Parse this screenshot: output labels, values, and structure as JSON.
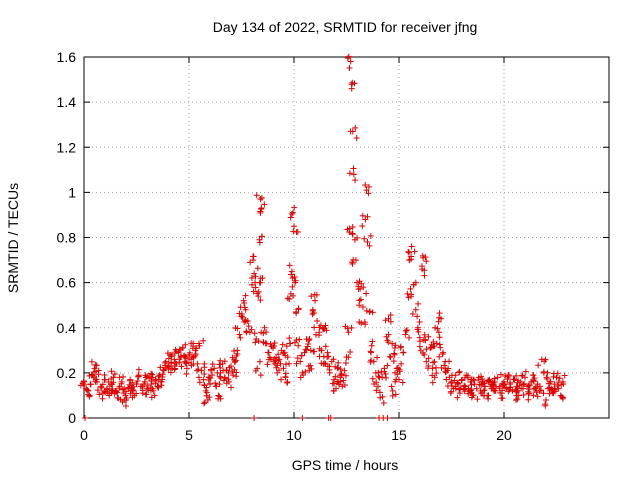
{
  "chart_data": {
    "type": "scatter",
    "title": "Day 134 of 2022, SRMTID for receiver jfng",
    "xlabel": "GPS time / hours",
    "ylabel": "SRMTID / TECUs",
    "xlim": [
      0,
      25
    ],
    "ylim": [
      0,
      1.6
    ],
    "xticks": [
      0,
      5,
      10,
      15,
      20
    ],
    "xtick_labels": [
      "0",
      "5",
      "10",
      "15",
      "20"
    ],
    "yticks": [
      0,
      0.2,
      0.4,
      0.6,
      0.8,
      1,
      1.2,
      1.4,
      1.6
    ],
    "ytick_labels": [
      "0",
      "0.2",
      "0.4",
      "0.6",
      "0.8",
      "1",
      "1.2",
      "1.4",
      "1.6"
    ],
    "grid": true,
    "marker": "plus",
    "colors": {
      "series": "#e00000",
      "grid": "#a0a0a0",
      "frame": "#000000"
    },
    "series": [
      {
        "name": "SRMTID",
        "points": [
          [
            0.0,
            0.16
          ],
          [
            0.1,
            0.13
          ],
          [
            0.2,
            0.12
          ],
          [
            0.3,
            0.15
          ],
          [
            0.4,
            0.19
          ],
          [
            0.5,
            0.22
          ],
          [
            0.6,
            0.17
          ],
          [
            0.7,
            0.21
          ],
          [
            0.8,
            0.14
          ],
          [
            0.9,
            0.11
          ],
          [
            1.0,
            0.17
          ],
          [
            1.1,
            0.13
          ],
          [
            1.2,
            0.1
          ],
          [
            1.3,
            0.15
          ],
          [
            1.4,
            0.18
          ],
          [
            1.5,
            0.12
          ],
          [
            1.6,
            0.09
          ],
          [
            1.7,
            0.14
          ],
          [
            1.8,
            0.16
          ],
          [
            1.9,
            0.11
          ],
          [
            2.0,
            0.08
          ],
          [
            2.1,
            0.13
          ],
          [
            2.2,
            0.17
          ],
          [
            2.3,
            0.12
          ],
          [
            2.4,
            0.1
          ],
          [
            2.5,
            0.15
          ],
          [
            2.6,
            0.19
          ],
          [
            2.7,
            0.14
          ],
          [
            2.8,
            0.11
          ],
          [
            2.9,
            0.16
          ],
          [
            3.0,
            0.13
          ],
          [
            3.1,
            0.18
          ],
          [
            3.2,
            0.15
          ],
          [
            3.3,
            0.12
          ],
          [
            3.4,
            0.17
          ],
          [
            3.5,
            0.14
          ],
          [
            3.6,
            0.19
          ],
          [
            3.7,
            0.16
          ],
          [
            3.8,
            0.21
          ],
          [
            3.9,
            0.25
          ],
          [
            4.0,
            0.23
          ],
          [
            4.1,
            0.28
          ],
          [
            4.2,
            0.22
          ],
          [
            4.3,
            0.26
          ],
          [
            4.4,
            0.24
          ],
          [
            4.5,
            0.29
          ],
          [
            4.6,
            0.27
          ],
          [
            4.7,
            0.31
          ],
          [
            4.8,
            0.25
          ],
          [
            4.9,
            0.22
          ],
          [
            5.0,
            0.28
          ],
          [
            5.1,
            0.26
          ],
          [
            5.2,
            0.33
          ],
          [
            5.3,
            0.3
          ],
          [
            5.4,
            0.24
          ],
          [
            5.5,
            0.32
          ],
          [
            5.6,
            0.21
          ],
          [
            5.7,
            0.17
          ],
          [
            5.8,
            0.12
          ],
          [
            5.9,
            0.08
          ],
          [
            6.0,
            0.15
          ],
          [
            6.1,
            0.19
          ],
          [
            6.2,
            0.22
          ],
          [
            6.3,
            0.14
          ],
          [
            6.4,
            0.1
          ],
          [
            6.5,
            0.2
          ],
          [
            6.6,
            0.24
          ],
          [
            6.7,
            0.18
          ],
          [
            6.8,
            0.21
          ],
          [
            6.9,
            0.16
          ],
          [
            7.0,
            0.23
          ],
          [
            7.1,
            0.19
          ],
          [
            7.2,
            0.25
          ],
          [
            7.3,
            0.3
          ],
          [
            7.4,
            0.37
          ],
          [
            7.5,
            0.45
          ],
          [
            7.6,
            0.52
          ],
          [
            7.7,
            0.48
          ],
          [
            7.8,
            0.43
          ],
          [
            7.9,
            0.38
          ],
          [
            8.0,
            0.59
          ],
          [
            8.05,
            0.7
          ],
          [
            8.1,
            0.64
          ],
          [
            8.2,
            0.35
          ],
          [
            8.25,
            0.22
          ],
          [
            8.3,
            0.54
          ],
          [
            8.35,
            0.79
          ],
          [
            8.4,
            0.97
          ],
          [
            8.45,
            0.93
          ],
          [
            8.5,
            0.62
          ],
          [
            8.6,
            0.4
          ],
          [
            8.7,
            0.33
          ],
          [
            8.8,
            0.29
          ],
          [
            8.9,
            0.26
          ],
          [
            9.0,
            0.31
          ],
          [
            9.1,
            0.24
          ],
          [
            9.2,
            0.2
          ],
          [
            9.3,
            0.26
          ],
          [
            9.4,
            0.3
          ],
          [
            9.5,
            0.22
          ],
          [
            9.6,
            0.18
          ],
          [
            9.7,
            0.27
          ],
          [
            9.8,
            0.33
          ],
          [
            9.85,
            0.55
          ],
          [
            9.9,
            0.65
          ],
          [
            9.95,
            0.91
          ],
          [
            10.0,
            0.85
          ],
          [
            10.05,
            0.6
          ],
          [
            10.1,
            0.47
          ],
          [
            10.2,
            0.32
          ],
          [
            10.3,
            0.25
          ],
          [
            10.4,
            0.2
          ],
          [
            10.5,
            0.29
          ],
          [
            10.6,
            0.35
          ],
          [
            10.7,
            0.23
          ],
          [
            10.8,
            0.3
          ],
          [
            10.9,
            0.48
          ],
          [
            11.0,
            0.52
          ],
          [
            11.1,
            0.43
          ],
          [
            11.2,
            0.38
          ],
          [
            11.3,
            0.3
          ],
          [
            11.4,
            0.24
          ],
          [
            11.5,
            0.41
          ],
          [
            11.6,
            0.29
          ],
          [
            11.7,
            0.2
          ],
          [
            11.8,
            0.25
          ],
          [
            11.9,
            0.17
          ],
          [
            12.0,
            0.13
          ],
          [
            12.1,
            0.22
          ],
          [
            12.2,
            0.18
          ],
          [
            12.3,
            0.14
          ],
          [
            12.4,
            0.21
          ],
          [
            12.5,
            0.27
          ],
          [
            12.6,
            0.38
          ],
          [
            12.65,
            0.84
          ],
          [
            12.7,
            1.58
          ],
          [
            12.75,
            1.46
          ],
          [
            12.8,
            1.27
          ],
          [
            12.85,
            1.08
          ],
          [
            12.9,
            0.79
          ],
          [
            12.95,
            0.7
          ],
          [
            13.0,
            0.6
          ],
          [
            13.1,
            0.5
          ],
          [
            13.2,
            0.42
          ],
          [
            13.3,
            0.58
          ],
          [
            13.4,
            0.88
          ],
          [
            13.45,
            1.01
          ],
          [
            13.5,
            0.78
          ],
          [
            13.6,
            0.47
          ],
          [
            13.7,
            0.32
          ],
          [
            13.8,
            0.25
          ],
          [
            13.9,
            0.2
          ],
          [
            14.0,
            0.14
          ],
          [
            14.1,
            0.09
          ],
          [
            14.2,
            0.18
          ],
          [
            14.3,
            0.22
          ],
          [
            14.4,
            0.36
          ],
          [
            14.5,
            0.44
          ],
          [
            14.6,
            0.27
          ],
          [
            14.7,
            0.12
          ],
          [
            14.8,
            0.31
          ],
          [
            14.9,
            0.22
          ],
          [
            15.0,
            0.17
          ],
          [
            15.1,
            0.24
          ],
          [
            15.2,
            0.29
          ],
          [
            15.3,
            0.37
          ],
          [
            15.4,
            0.55
          ],
          [
            15.5,
            0.7
          ],
          [
            15.6,
            0.76
          ],
          [
            15.7,
            0.59
          ],
          [
            15.8,
            0.48
          ],
          [
            15.9,
            0.4
          ],
          [
            16.0,
            0.34
          ],
          [
            16.1,
            0.66
          ],
          [
            16.15,
            0.71
          ],
          [
            16.2,
            0.28
          ],
          [
            16.3,
            0.25
          ],
          [
            16.4,
            0.36
          ],
          [
            16.5,
            0.31
          ],
          [
            16.6,
            0.22
          ],
          [
            16.7,
            0.18
          ],
          [
            16.8,
            0.33
          ],
          [
            16.9,
            0.38
          ],
          [
            17.0,
            0.44
          ],
          [
            17.1,
            0.29
          ],
          [
            17.2,
            0.25
          ],
          [
            17.3,
            0.21
          ],
          [
            17.4,
            0.18
          ],
          [
            17.5,
            0.16
          ],
          [
            17.6,
            0.13
          ],
          [
            17.7,
            0.19
          ],
          [
            17.8,
            0.15
          ],
          [
            17.9,
            0.11
          ],
          [
            18.0,
            0.17
          ],
          [
            18.1,
            0.14
          ],
          [
            18.2,
            0.19
          ],
          [
            18.3,
            0.12
          ],
          [
            18.4,
            0.16
          ],
          [
            18.5,
            0.1
          ],
          [
            18.6,
            0.15
          ],
          [
            18.7,
            0.13
          ],
          [
            18.8,
            0.18
          ],
          [
            18.9,
            0.11
          ],
          [
            19.0,
            0.16
          ],
          [
            19.1,
            0.14
          ],
          [
            19.2,
            0.1
          ],
          [
            19.3,
            0.17
          ],
          [
            19.4,
            0.13
          ],
          [
            19.5,
            0.15
          ],
          [
            19.6,
            0.12
          ],
          [
            19.7,
            0.18
          ],
          [
            19.8,
            0.14
          ],
          [
            19.9,
            0.11
          ],
          [
            20.0,
            0.16
          ],
          [
            20.1,
            0.13
          ],
          [
            20.2,
            0.19
          ],
          [
            20.3,
            0.15
          ],
          [
            20.4,
            0.12
          ],
          [
            20.5,
            0.17
          ],
          [
            20.6,
            0.14
          ],
          [
            20.7,
            0.1
          ],
          [
            20.8,
            0.16
          ],
          [
            20.9,
            0.13
          ],
          [
            21.0,
            0.18
          ],
          [
            21.1,
            0.14
          ],
          [
            21.2,
            0.11
          ],
          [
            21.3,
            0.16
          ],
          [
            21.4,
            0.19
          ],
          [
            21.5,
            0.13
          ],
          [
            21.6,
            0.15
          ],
          [
            21.7,
            0.12
          ],
          [
            21.8,
            0.26
          ],
          [
            21.9,
            0.2
          ],
          [
            22.0,
            0.08
          ],
          [
            22.1,
            0.13
          ],
          [
            22.2,
            0.16
          ],
          [
            22.3,
            0.11
          ],
          [
            22.4,
            0.15
          ],
          [
            22.5,
            0.18
          ],
          [
            22.6,
            0.13
          ],
          [
            22.7,
            0.1
          ],
          [
            22.8,
            0.16
          ],
          [
            0.05,
            0.0
          ],
          [
            8.1,
            0.0
          ],
          [
            10.4,
            0.0
          ],
          [
            11.65,
            0.0
          ],
          [
            11.75,
            0.0
          ],
          [
            14.05,
            0.0
          ],
          [
            14.25,
            0.0
          ],
          [
            14.45,
            0.0
          ]
        ]
      }
    ]
  }
}
